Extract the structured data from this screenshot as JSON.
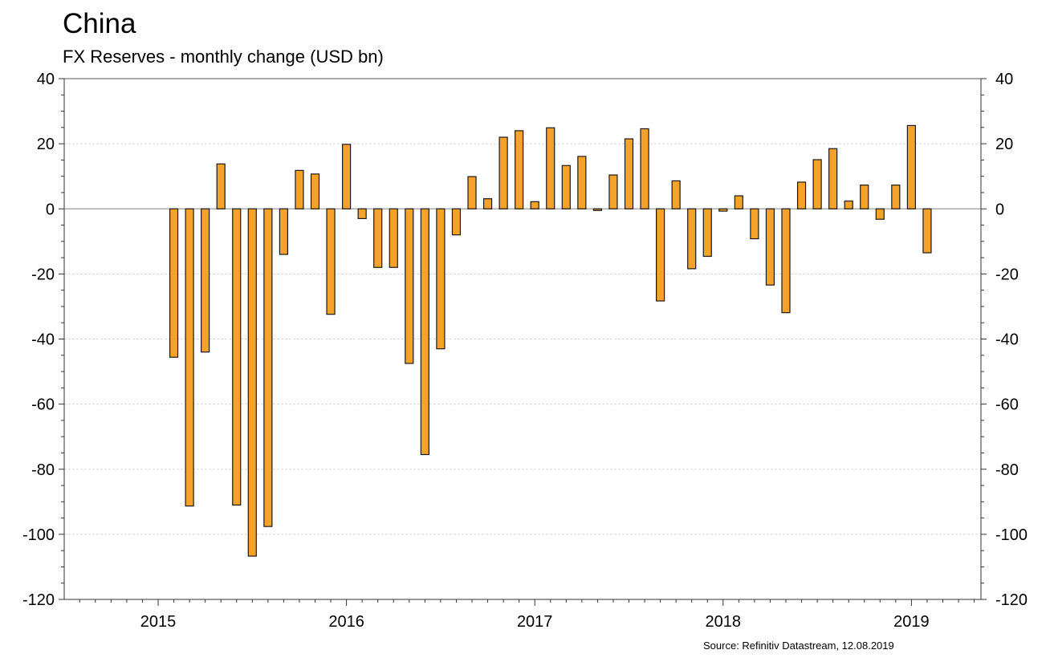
{
  "chart_data": {
    "type": "bar",
    "title": "China",
    "subtitle": "FX Reserves - monthly change (USD bn)",
    "source": "Source: Refinitiv Datastream, 12.08.2019",
    "ylim": [
      -120,
      40
    ],
    "yticks": [
      40,
      20,
      0,
      -20,
      -40,
      -60,
      -80,
      -100,
      -120
    ],
    "grid": true,
    "x_tick_labels": [
      "2015",
      "2016",
      "2017",
      "2018",
      "2019"
    ],
    "series": [
      {
        "values": [
          {
            "x": "2015-02",
            "y": -45.6
          },
          {
            "x": "2015-03",
            "y": -91.3
          },
          {
            "x": "2015-04",
            "y": -44.0
          },
          {
            "x": "2015-05",
            "y": 13.8
          },
          {
            "x": "2015-06",
            "y": -91.0
          },
          {
            "x": "2015-07",
            "y": -106.7
          },
          {
            "x": "2015-08",
            "y": -97.6
          },
          {
            "x": "2015-09",
            "y": -14.0
          },
          {
            "x": "2015-10",
            "y": 11.8
          },
          {
            "x": "2015-11",
            "y": 10.7
          },
          {
            "x": "2015-12",
            "y": -32.4
          },
          {
            "x": "2016-01",
            "y": 19.8
          },
          {
            "x": "2016-02",
            "y": -3.0
          },
          {
            "x": "2016-03",
            "y": -18.0
          },
          {
            "x": "2016-04",
            "y": -18.0
          },
          {
            "x": "2016-05",
            "y": -47.5
          },
          {
            "x": "2016-06",
            "y": -75.5
          },
          {
            "x": "2016-07",
            "y": -43.0
          },
          {
            "x": "2016-08",
            "y": -8.0
          },
          {
            "x": "2016-09",
            "y": 9.9
          },
          {
            "x": "2016-10",
            "y": 3.1
          },
          {
            "x": "2016-11",
            "y": 22.0
          },
          {
            "x": "2016-12",
            "y": 24.0
          },
          {
            "x": "2017-01",
            "y": 2.2
          },
          {
            "x": "2017-02",
            "y": 24.9
          },
          {
            "x": "2017-03",
            "y": 13.3
          },
          {
            "x": "2017-04",
            "y": 16.1
          },
          {
            "x": "2017-05",
            "y": -0.5
          },
          {
            "x": "2017-06",
            "y": 10.4
          },
          {
            "x": "2017-07",
            "y": 21.5
          },
          {
            "x": "2017-08",
            "y": 24.6
          },
          {
            "x": "2017-09",
            "y": -28.3
          },
          {
            "x": "2017-10",
            "y": 8.6
          },
          {
            "x": "2017-11",
            "y": -18.4
          },
          {
            "x": "2017-12",
            "y": -14.6
          },
          {
            "x": "2018-01",
            "y": -0.7
          },
          {
            "x": "2018-02",
            "y": 4.0
          },
          {
            "x": "2018-03",
            "y": -9.2
          },
          {
            "x": "2018-04",
            "y": -23.4
          },
          {
            "x": "2018-05",
            "y": -31.9
          },
          {
            "x": "2018-06",
            "y": 8.2
          },
          {
            "x": "2018-07",
            "y": 15.1
          },
          {
            "x": "2018-08",
            "y": 18.5
          },
          {
            "x": "2018-09",
            "y": 2.4
          },
          {
            "x": "2018-10",
            "y": 7.3
          },
          {
            "x": "2018-11",
            "y": -3.2
          },
          {
            "x": "2018-12",
            "y": 7.3
          },
          {
            "x": "2019-01",
            "y": 25.6
          },
          {
            "x": "2019-02",
            "y": -13.5
          }
        ],
        "color": "#f5a22a"
      }
    ]
  }
}
